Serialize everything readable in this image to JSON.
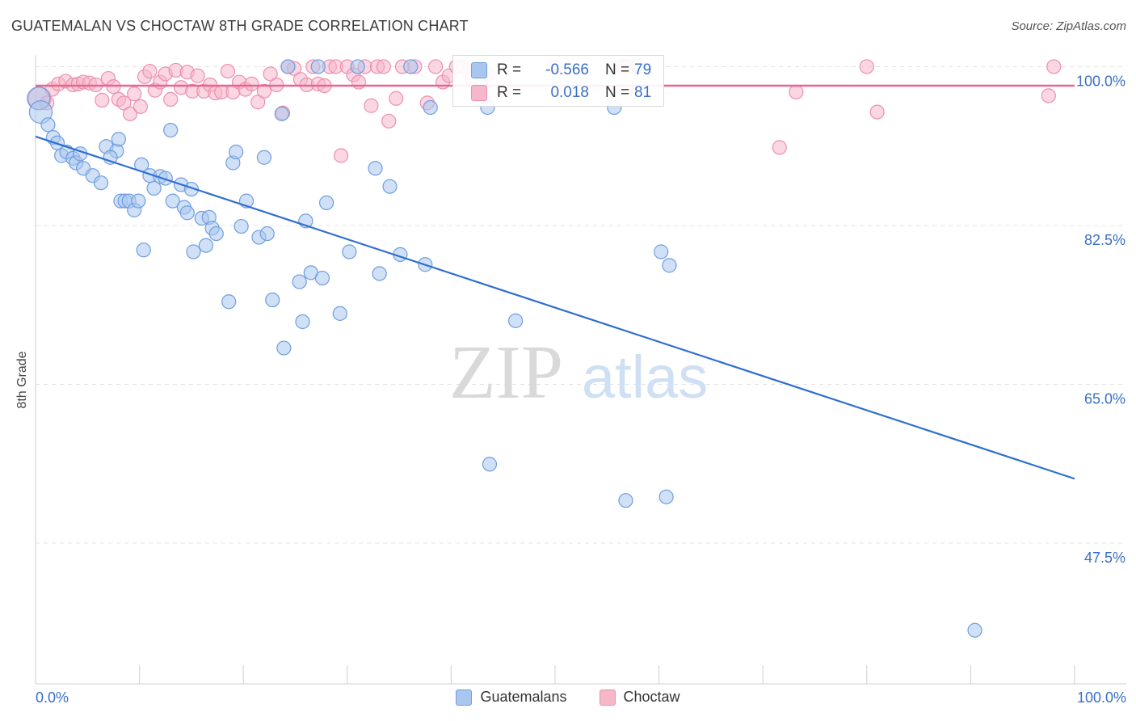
{
  "header": {
    "title": "GUATEMALAN VS CHOCTAW 8TH GRADE CORRELATION CHART",
    "source": "Source: ZipAtlas.com"
  },
  "watermark": {
    "zip": "ZIP",
    "atlas": "atlas"
  },
  "legend": {
    "rows": [
      {
        "r_label": "R =",
        "r_value": "-0.566",
        "n_label": "N =",
        "n_value": "79"
      },
      {
        "r_label": "R =",
        "r_value": "0.018",
        "n_label": "N =",
        "n_value": "81"
      }
    ]
  },
  "bottom_legend": {
    "series1": "Guatemalans",
    "series2": "Choctaw"
  },
  "x_axis": {
    "left_label": "0.0%",
    "right_label": "100.0%"
  },
  "colors": {
    "blue_fill": "#a9c6ef",
    "blue_stroke": "#6f9ee0",
    "blue_line": "#2f6fd0",
    "pink_fill": "#f6b7cb",
    "pink_stroke": "#ee8fae",
    "pink_line": "#e8668e",
    "tick_label": "#3a6fc7",
    "grid": "#e3e3e3"
  },
  "chart_data": {
    "type": "scatter",
    "title": "GUATEMALAN VS CHOCTAW 8TH GRADE CORRELATION CHART",
    "ylabel": "8th Grade",
    "xlabel": "",
    "xlim": [
      0,
      100
    ],
    "ylim": [
      32,
      102
    ],
    "y_ticks": [
      {
        "value": 100,
        "label": "100.0%"
      },
      {
        "value": 82.5,
        "label": "82.5%"
      },
      {
        "value": 65,
        "label": "65.0%"
      },
      {
        "value": 47.5,
        "label": "47.5%"
      }
    ],
    "x_tick_values": [
      0,
      10,
      20,
      30,
      40,
      50,
      60,
      70,
      80,
      90,
      100
    ],
    "grid": true,
    "legend_position": "top-center",
    "series": [
      {
        "name": "Guatemalans",
        "r": -0.566,
        "n": 79,
        "trend": {
          "x": [
            0,
            100
          ],
          "y": [
            92.3,
            54.6
          ]
        },
        "points": [
          [
            0.3,
            96.5,
            true
          ],
          [
            0.5,
            95.0,
            true
          ],
          [
            1.2,
            93.6,
            false
          ],
          [
            1.7,
            92.2,
            false
          ],
          [
            2.1,
            91.6,
            false
          ],
          [
            2.5,
            90.2,
            false
          ],
          [
            3.0,
            90.6,
            false
          ],
          [
            3.6,
            89.9,
            false
          ],
          [
            3.9,
            89.4,
            false
          ],
          [
            4.3,
            90.4,
            false
          ],
          [
            4.6,
            88.8,
            false
          ],
          [
            5.5,
            88.0,
            false
          ],
          [
            6.3,
            87.2,
            false
          ],
          [
            6.8,
            91.2,
            false
          ],
          [
            7.8,
            90.7,
            false
          ],
          [
            7.2,
            90.0,
            false
          ],
          [
            8.0,
            92.0,
            false
          ],
          [
            8.2,
            85.2,
            false
          ],
          [
            8.6,
            85.2,
            false
          ],
          [
            9.0,
            85.2,
            false
          ],
          [
            9.5,
            84.2,
            false
          ],
          [
            9.9,
            85.2,
            false
          ],
          [
            10.2,
            89.2,
            false
          ],
          [
            10.4,
            79.8,
            false
          ],
          [
            11.0,
            88.0,
            false
          ],
          [
            11.4,
            86.6,
            false
          ],
          [
            12.0,
            87.9,
            false
          ],
          [
            12.5,
            87.7,
            false
          ],
          [
            13.0,
            93.0,
            false
          ],
          [
            13.2,
            85.2,
            false
          ],
          [
            14.0,
            87.0,
            false
          ],
          [
            14.3,
            84.5,
            false
          ],
          [
            14.6,
            83.9,
            false
          ],
          [
            15.0,
            86.5,
            false
          ],
          [
            15.2,
            79.6,
            false
          ],
          [
            16.0,
            83.3,
            false
          ],
          [
            16.4,
            80.3,
            false
          ],
          [
            16.7,
            83.4,
            false
          ],
          [
            17.0,
            82.2,
            false
          ],
          [
            17.4,
            81.6,
            false
          ],
          [
            18.6,
            74.1,
            false
          ],
          [
            19.0,
            89.4,
            false
          ],
          [
            19.3,
            90.6,
            false
          ],
          [
            19.8,
            82.4,
            false
          ],
          [
            20.3,
            85.2,
            false
          ],
          [
            21.5,
            81.2,
            false
          ],
          [
            22.0,
            90.0,
            false
          ],
          [
            22.3,
            81.6,
            false
          ],
          [
            22.8,
            74.3,
            false
          ],
          [
            23.7,
            94.8,
            false
          ],
          [
            23.9,
            69.0,
            false
          ],
          [
            24.3,
            100.0,
            false
          ],
          [
            25.4,
            76.3,
            false
          ],
          [
            25.7,
            71.9,
            false
          ],
          [
            26.0,
            83.0,
            false
          ],
          [
            26.5,
            77.3,
            false
          ],
          [
            27.2,
            100.0,
            false
          ],
          [
            27.6,
            76.7,
            false
          ],
          [
            28.0,
            85.0,
            false
          ],
          [
            29.3,
            72.8,
            false
          ],
          [
            30.2,
            79.6,
            false
          ],
          [
            31.0,
            100.0,
            false
          ],
          [
            32.7,
            88.8,
            false
          ],
          [
            33.1,
            77.2,
            false
          ],
          [
            34.1,
            86.8,
            false
          ],
          [
            35.1,
            79.3,
            false
          ],
          [
            36.1,
            100.0,
            false
          ],
          [
            37.5,
            78.2,
            false
          ],
          [
            38.0,
            95.5,
            false
          ],
          [
            43.5,
            95.5,
            false
          ],
          [
            43.7,
            56.2,
            false
          ],
          [
            46.2,
            72.0,
            false
          ],
          [
            55.7,
            95.5,
            false
          ],
          [
            56.8,
            52.2,
            false
          ],
          [
            58.0,
            100.0,
            false
          ],
          [
            60.2,
            79.6,
            false
          ],
          [
            60.7,
            52.6,
            false
          ],
          [
            61.0,
            78.1,
            false
          ],
          [
            90.4,
            37.9,
            false
          ]
        ]
      },
      {
        "name": "Choctaw",
        "r": 0.018,
        "n": 81,
        "trend": {
          "x": [
            0,
            100
          ],
          "y": [
            97.9,
            97.9
          ]
        },
        "points": [
          [
            0.4,
            96.5,
            true
          ],
          [
            1.1,
            96.0,
            false
          ],
          [
            1.6,
            97.5,
            false
          ],
          [
            2.2,
            98.1,
            false
          ],
          [
            2.9,
            98.4,
            false
          ],
          [
            3.6,
            98.0,
            false
          ],
          [
            4.1,
            98.1,
            false
          ],
          [
            4.6,
            98.3,
            false
          ],
          [
            5.2,
            98.2,
            false
          ],
          [
            5.8,
            98.0,
            false
          ],
          [
            6.4,
            96.3,
            false
          ],
          [
            7.0,
            98.7,
            false
          ],
          [
            7.5,
            97.8,
            false
          ],
          [
            8.0,
            96.4,
            false
          ],
          [
            8.5,
            96.0,
            false
          ],
          [
            9.1,
            94.8,
            false
          ],
          [
            9.5,
            97.0,
            false
          ],
          [
            10.1,
            95.6,
            false
          ],
          [
            10.5,
            98.9,
            false
          ],
          [
            11.0,
            99.5,
            false
          ],
          [
            11.5,
            97.4,
            false
          ],
          [
            12.0,
            98.3,
            false
          ],
          [
            12.5,
            99.2,
            false
          ],
          [
            13.0,
            96.4,
            false
          ],
          [
            13.5,
            99.6,
            false
          ],
          [
            14.0,
            97.7,
            false
          ],
          [
            14.6,
            99.4,
            false
          ],
          [
            15.1,
            97.3,
            false
          ],
          [
            15.6,
            99.0,
            false
          ],
          [
            16.2,
            97.3,
            false
          ],
          [
            16.8,
            98.0,
            false
          ],
          [
            17.3,
            97.1,
            false
          ],
          [
            17.9,
            97.2,
            false
          ],
          [
            18.5,
            99.5,
            false
          ],
          [
            19.0,
            97.2,
            false
          ],
          [
            19.6,
            98.3,
            false
          ],
          [
            20.2,
            97.5,
            false
          ],
          [
            20.8,
            98.1,
            false
          ],
          [
            21.4,
            96.1,
            false
          ],
          [
            22.0,
            97.3,
            false
          ],
          [
            22.6,
            99.2,
            false
          ],
          [
            23.2,
            98.0,
            false
          ],
          [
            23.8,
            94.9,
            false
          ],
          [
            24.3,
            100.0,
            false
          ],
          [
            24.9,
            99.8,
            false
          ],
          [
            25.5,
            98.6,
            false
          ],
          [
            26.1,
            98.0,
            false
          ],
          [
            26.7,
            100.0,
            false
          ],
          [
            27.2,
            98.1,
            false
          ],
          [
            27.8,
            97.9,
            false
          ],
          [
            28.3,
            100.0,
            false
          ],
          [
            28.9,
            100.0,
            false
          ],
          [
            29.4,
            90.2,
            false
          ],
          [
            30.0,
            100.0,
            false
          ],
          [
            30.6,
            99.1,
            false
          ],
          [
            31.1,
            98.3,
            false
          ],
          [
            31.7,
            100.0,
            false
          ],
          [
            32.3,
            95.7,
            false
          ],
          [
            32.9,
            100.0,
            false
          ],
          [
            33.5,
            100.0,
            false
          ],
          [
            34.0,
            94.0,
            false
          ],
          [
            34.7,
            96.5,
            false
          ],
          [
            35.3,
            100.0,
            false
          ],
          [
            36.5,
            100.0,
            false
          ],
          [
            37.7,
            96.0,
            false
          ],
          [
            38.5,
            100.0,
            false
          ],
          [
            39.2,
            98.3,
            false
          ],
          [
            39.8,
            99.0,
            false
          ],
          [
            40.5,
            100.0,
            false
          ],
          [
            41.2,
            100.0,
            false
          ],
          [
            42.0,
            98.7,
            false
          ],
          [
            43.5,
            99.2,
            false
          ],
          [
            50.0,
            100.0,
            false
          ],
          [
            56.5,
            100.0,
            false
          ],
          [
            57.0,
            100.0,
            false
          ],
          [
            71.6,
            91.1,
            false
          ],
          [
            73.2,
            97.2,
            false
          ],
          [
            80.0,
            100.0,
            false
          ],
          [
            81.0,
            95.0,
            false
          ],
          [
            97.5,
            96.8,
            false
          ],
          [
            98.0,
            100.0,
            false
          ]
        ]
      }
    ]
  }
}
